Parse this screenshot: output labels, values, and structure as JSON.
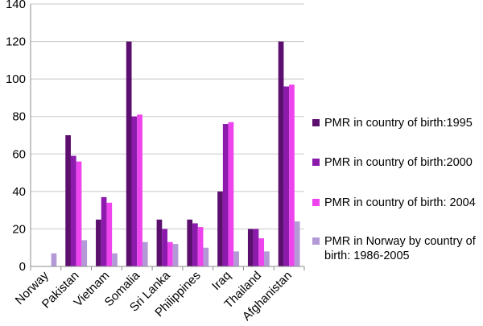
{
  "chart_data": {
    "type": "bar",
    "categories": [
      "Norway",
      "Pakistan",
      "Vietnam",
      "Somalia",
      "Sri Lanka",
      "Philippines",
      "Iraq",
      "Thailand",
      "Afghanistan"
    ],
    "series": [
      {
        "name": "PMR in country of birth:1995",
        "color": "#5c0f6e",
        "values": [
          null,
          70,
          25,
          120,
          25,
          25,
          40,
          20,
          120
        ]
      },
      {
        "name": "PMR in country of birth:2000",
        "color": "#8b1aad",
        "values": [
          null,
          59,
          37,
          80,
          20,
          23,
          76,
          20,
          96
        ]
      },
      {
        "name": "PMR in country of birth: 2004",
        "color": "#ee44ee",
        "values": [
          null,
          56,
          34,
          81,
          13,
          21,
          77,
          15,
          97
        ]
      },
      {
        "name": "PMR in Norway by country of birth: 1986-2005",
        "color": "#b39ad6",
        "values": [
          7,
          14,
          7,
          13,
          12,
          10,
          8,
          8,
          24
        ]
      }
    ],
    "y_ticks": [
      "0",
      "20",
      "40",
      "60",
      "80",
      "100",
      "120",
      "140"
    ],
    "ylim": [
      0,
      140
    ],
    "grid": true,
    "legend_position": "right"
  }
}
